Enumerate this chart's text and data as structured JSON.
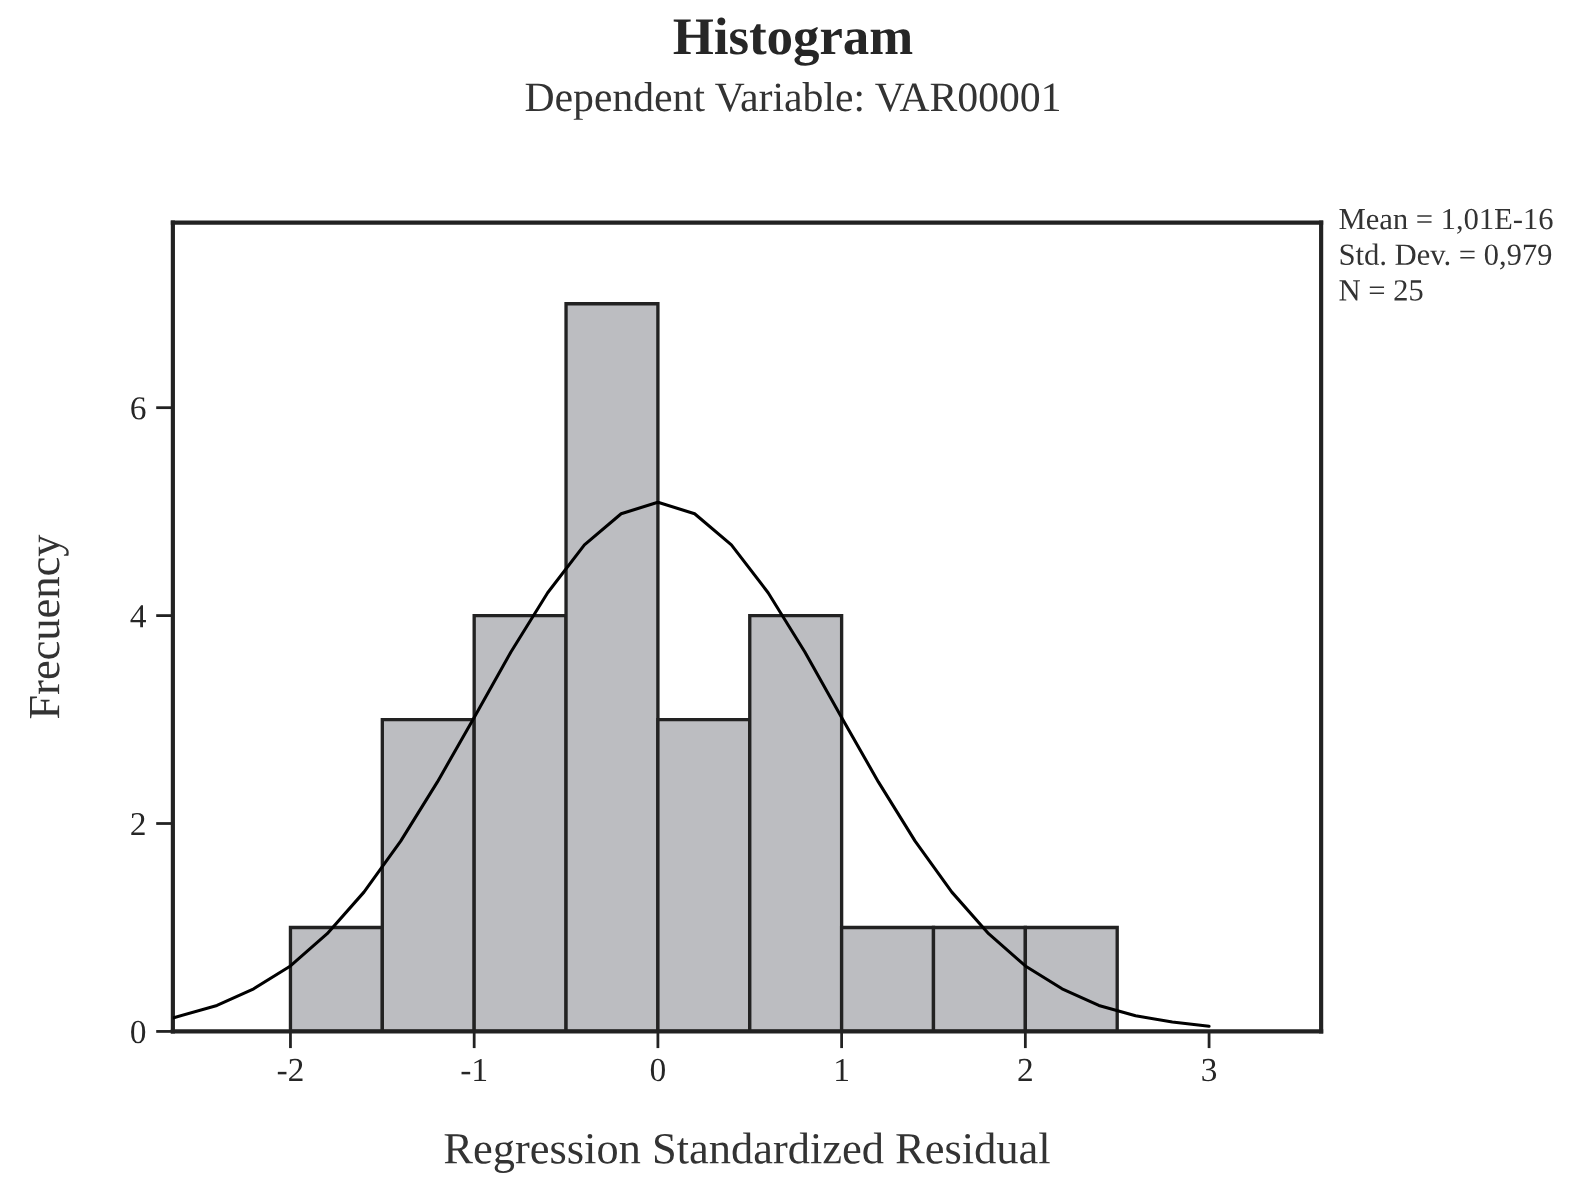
{
  "chart_data": {
    "type": "histogram",
    "title": "Histogram",
    "subtitle": "Dependent Variable: VAR00001",
    "xlabel": "Regression Standardized Residual",
    "ylabel": "Frecuency",
    "bins": [
      -2,
      -1.5,
      -1,
      -0.5,
      0,
      0.5,
      1,
      1.5,
      2,
      2.5
    ],
    "values": [
      1,
      3,
      4,
      7,
      3,
      4,
      1,
      1,
      1
    ],
    "color": "#bcbdc1",
    "series": [
      {
        "type": "line",
        "color": "#000000",
        "x": [
          -2.64,
          -2.4,
          -2.2,
          -2.0,
          -1.8,
          -1.6,
          -1.4,
          -1.2,
          -1.0,
          -0.8,
          -0.6,
          -0.4,
          -0.2,
          0,
          0.2,
          0.4,
          0.6,
          0.8,
          1.0,
          1.2,
          1.4,
          1.6,
          1.8,
          2.0,
          2.2,
          2.4,
          2.6,
          2.8,
          3.0
        ],
        "values": [
          0.13,
          0.25,
          0.41,
          0.63,
          0.94,
          1.34,
          1.83,
          2.4,
          3.02,
          3.65,
          4.22,
          4.68,
          4.98,
          5.09,
          4.98,
          4.68,
          4.22,
          3.65,
          3.02,
          2.4,
          1.83,
          1.34,
          0.94,
          0.63,
          0.41,
          0.25,
          0.15,
          0.09,
          0.05
        ]
      }
    ],
    "xlim": [
      -2.64,
      3.61
    ],
    "ylim": [
      0,
      7.78
    ],
    "xticks": [
      -2,
      -1,
      0,
      1,
      2,
      3
    ],
    "yticks": [
      0,
      2,
      4,
      6
    ],
    "grid": false,
    "legend": false,
    "annotations": [
      "Mean = 1,01E-16",
      "Std. Dev. = 0,979",
      "N = 25"
    ]
  }
}
